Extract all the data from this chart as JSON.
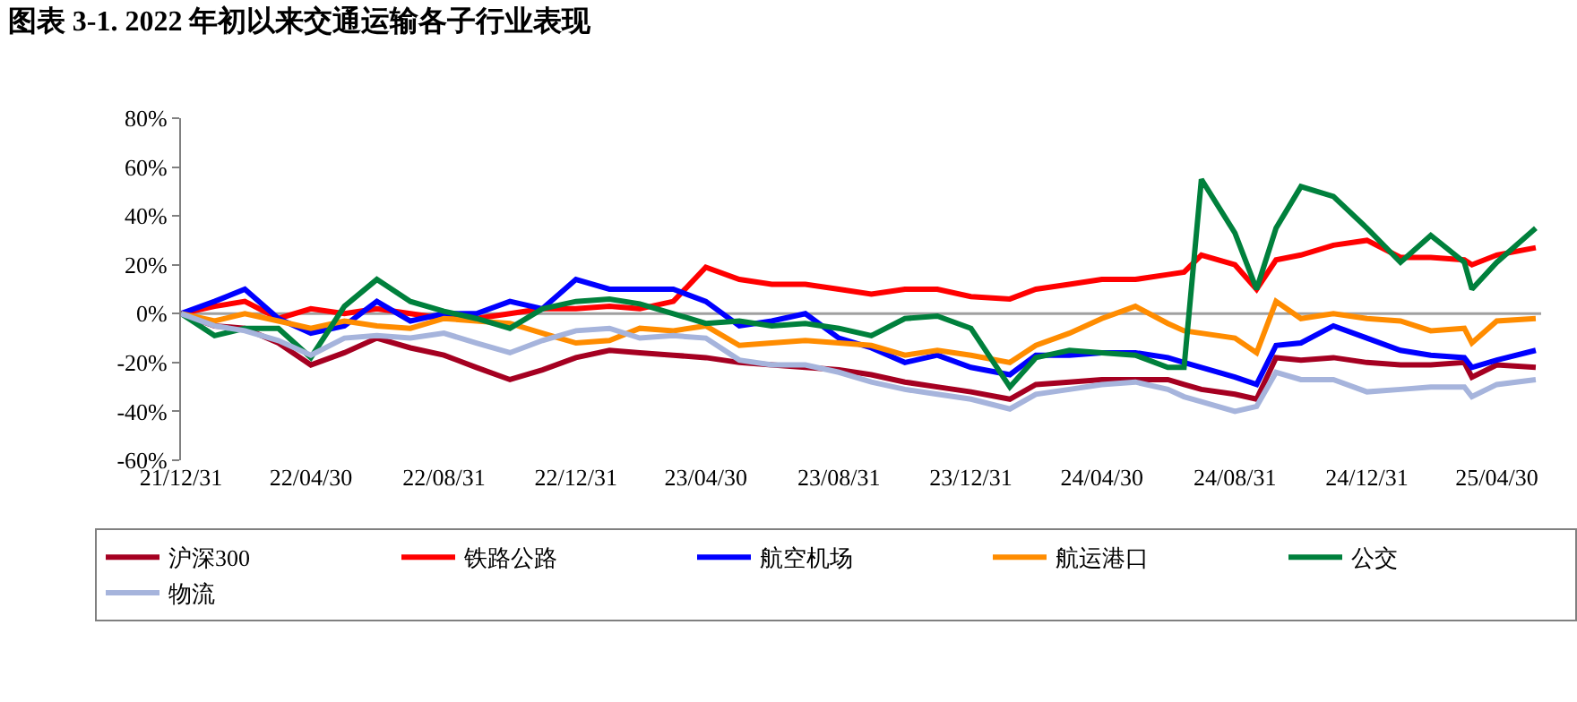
{
  "chart_data": {
    "type": "line",
    "title": "图表 3-1. 2022 年初以来交通运输各子行业表现",
    "x": [
      "2021-12-31",
      "2022-01-31",
      "2022-02-28",
      "2022-03-31",
      "2022-04-30",
      "2022-05-31",
      "2022-06-30",
      "2022-07-31",
      "2022-08-31",
      "2022-09-30",
      "2022-10-31",
      "2022-11-30",
      "2022-12-31",
      "2023-01-31",
      "2023-02-28",
      "2023-03-31",
      "2023-04-30",
      "2023-05-31",
      "2023-06-30",
      "2023-07-31",
      "2023-08-31",
      "2023-09-30",
      "2023-10-31",
      "2023-11-30",
      "2023-12-31",
      "2024-02-05",
      "2024-02-29",
      "2024-03-31",
      "2024-04-30",
      "2024-05-31",
      "2024-06-30",
      "2024-07-15",
      "2024-07-31",
      "2024-08-31",
      "2024-09-20",
      "2024-10-08",
      "2024-10-31",
      "2024-11-30",
      "2024-12-31",
      "2025-01-31",
      "2025-02-28",
      "2025-03-31",
      "2025-04-07",
      "2025-04-30",
      "2025-06-05"
    ],
    "series": [
      {
        "name": "沪深300",
        "color": "#a50021",
        "values": [
          0,
          -5,
          -6,
          -12,
          -21,
          -16,
          -10,
          -14,
          -17,
          -22,
          -27,
          -23,
          -18,
          -15,
          -16,
          -17,
          -18,
          -20,
          -21,
          -22,
          -23,
          -25,
          -28,
          -30,
          -32,
          -35,
          -29,
          -28,
          -27,
          -27,
          -27,
          -29,
          -31,
          -33,
          -35,
          -18,
          -19,
          -18,
          -20,
          -21,
          -21,
          -20,
          -26,
          -21,
          -22
        ]
      },
      {
        "name": "铁路公路",
        "color": "#ff0000",
        "values": [
          0,
          3,
          5,
          -2,
          2,
          0,
          2,
          0,
          -2,
          -2,
          0,
          2,
          2,
          3,
          2,
          5,
          19,
          14,
          12,
          12,
          10,
          8,
          10,
          10,
          7,
          6,
          10,
          12,
          14,
          14,
          16,
          17,
          24,
          20,
          10,
          22,
          24,
          28,
          30,
          23,
          23,
          22,
          20,
          24,
          27
        ]
      },
      {
        "name": "航空机场",
        "color": "#0000ff",
        "values": [
          0,
          5,
          10,
          -2,
          -8,
          -5,
          5,
          -3,
          0,
          0,
          5,
          2,
          14,
          10,
          10,
          10,
          5,
          -5,
          -3,
          0,
          -10,
          -14,
          -20,
          -17,
          -22,
          -25,
          -17,
          -17,
          -16,
          -16,
          -18,
          -20,
          -22,
          -26,
          -29,
          -13,
          -12,
          -5,
          -10,
          -15,
          -17,
          -18,
          -22,
          -19,
          -15
        ]
      },
      {
        "name": "航运港口",
        "color": "#ff8c00",
        "values": [
          0,
          -3,
          0,
          -3,
          -6,
          -3,
          -5,
          -6,
          -2,
          -3,
          -4,
          -8,
          -12,
          -11,
          -6,
          -7,
          -5,
          -13,
          -12,
          -11,
          -12,
          -13,
          -17,
          -15,
          -17,
          -20,
          -13,
          -8,
          -2,
          3,
          -4,
          -7,
          -8,
          -10,
          -16,
          5,
          -2,
          0,
          -2,
          -3,
          -7,
          -6,
          -12,
          -3,
          -2
        ]
      },
      {
        "name": "公交",
        "color": "#00803c",
        "values": [
          0,
          -9,
          -6,
          -6,
          -18,
          3,
          14,
          5,
          1,
          -2,
          -6,
          2,
          5,
          6,
          4,
          0,
          -4,
          -3,
          -5,
          -4,
          -6,
          -9,
          -2,
          -1,
          -6,
          -30,
          -18,
          -15,
          -16,
          -17,
          -22,
          -22,
          55,
          33,
          10,
          35,
          52,
          48,
          35,
          21,
          32,
          21,
          10,
          21,
          35
        ]
      },
      {
        "name": "物流",
        "color": "#a6b4dc",
        "values": [
          0,
          -5,
          -7,
          -11,
          -17,
          -10,
          -9,
          -10,
          -8,
          -12,
          -16,
          -11,
          -7,
          -6,
          -10,
          -9,
          -10,
          -19,
          -21,
          -21,
          -24,
          -28,
          -31,
          -33,
          -35,
          -39,
          -33,
          -31,
          -29,
          -28,
          -31,
          -34,
          -36,
          -40,
          -38,
          -24,
          -27,
          -27,
          -32,
          -31,
          -30,
          -30,
          -34,
          -29,
          -27
        ]
      }
    ],
    "ylim": [
      -60,
      80
    ],
    "yticks": [
      {
        "value": -60,
        "label": "-60%"
      },
      {
        "value": -40,
        "label": "-40%"
      },
      {
        "value": -20,
        "label": "-20%"
      },
      {
        "value": 0,
        "label": "0%"
      },
      {
        "value": 20,
        "label": "20%"
      },
      {
        "value": 40,
        "label": "40%"
      },
      {
        "value": 60,
        "label": "60%"
      },
      {
        "value": 80,
        "label": "80%"
      }
    ],
    "xlim": [
      "2021-12-31",
      "2025-06-10"
    ],
    "xticks": [
      {
        "value": "2021-12-31",
        "label": "21/12/31"
      },
      {
        "value": "2022-04-30",
        "label": "22/04/30"
      },
      {
        "value": "2022-08-31",
        "label": "22/08/31"
      },
      {
        "value": "2022-12-31",
        "label": "22/12/31"
      },
      {
        "value": "2023-04-30",
        "label": "23/04/30"
      },
      {
        "value": "2023-08-31",
        "label": "23/08/31"
      },
      {
        "value": "2023-12-31",
        "label": "23/12/31"
      },
      {
        "value": "2024-04-30",
        "label": "24/04/30"
      },
      {
        "value": "2024-08-31",
        "label": "24/08/31"
      },
      {
        "value": "2024-12-31",
        "label": "24/12/31"
      },
      {
        "value": "2025-04-30",
        "label": "25/04/30"
      }
    ],
    "ref_lines": [
      {
        "axis": "y",
        "value": 0,
        "color": "#a0a0a0"
      }
    ],
    "grid": false,
    "legend": "bottom",
    "marker": "none",
    "line_style": "solid"
  }
}
